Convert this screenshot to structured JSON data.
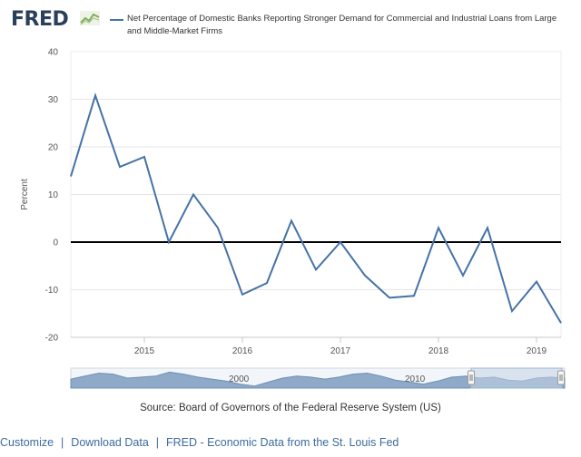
{
  "header": {
    "logo_text": "FRED",
    "series_title": "Net Percentage of Domestic Banks Reporting Stronger Demand for Commercial and Industrial Loans from Large and Middle-Market Firms"
  },
  "colors": {
    "series": "#4572a7",
    "grid": "#e6e6e6",
    "zero_line": "#000000",
    "navigator_fill": "#8fa9c8",
    "navigator_window": "#c5d3e6",
    "footer_link": "#3d6b9c"
  },
  "chart_data": {
    "type": "line",
    "title": "Net Percentage of Domestic Banks Reporting Stronger Demand for Commercial and Industrial Loans from Large and Middle-Market Firms",
    "xlabel": "",
    "ylabel": "Percent",
    "ylim": [
      -20,
      40
    ],
    "yticks": [
      -20,
      -10,
      0,
      10,
      20,
      30,
      40
    ],
    "xlim": [
      2014.25,
      2019.25
    ],
    "xticks": [
      {
        "value": 2015,
        "label": "2015"
      },
      {
        "value": 2016,
        "label": "2016"
      },
      {
        "value": 2017,
        "label": "2017"
      },
      {
        "value": 2018,
        "label": "2018"
      },
      {
        "value": 2019,
        "label": "2019"
      }
    ],
    "zero_line": true,
    "grid": true,
    "series": [
      {
        "name": "Net Percentage of Domestic Banks Reporting Stronger Demand for Commercial and Industrial Loans from Large and Middle-Market Firms",
        "x": [
          2014.25,
          2014.5,
          2014.75,
          2015.0,
          2015.25,
          2015.5,
          2015.75,
          2016.0,
          2016.25,
          2016.5,
          2016.75,
          2017.0,
          2017.25,
          2017.5,
          2017.75,
          2018.0,
          2018.25,
          2018.5,
          2018.75,
          2019.0,
          2019.25
        ],
        "values": [
          13.8,
          30.8,
          15.8,
          17.9,
          0.0,
          10.0,
          3.0,
          -11.0,
          -8.6,
          4.5,
          -5.8,
          0.0,
          -7.0,
          -11.7,
          -11.3,
          3.0,
          -7.0,
          3.0,
          -14.5,
          -8.3,
          -17.0
        ]
      }
    ]
  },
  "navigator": {
    "label_left": "2000",
    "label_right": "2010"
  },
  "source_text": "Source: Board of Governors of the Federal Reserve System (US)",
  "footer": {
    "customize": "Customize",
    "download": "Download Data",
    "fred_link": "FRED - Economic Data from the St. Louis Fed",
    "separator": "|"
  }
}
